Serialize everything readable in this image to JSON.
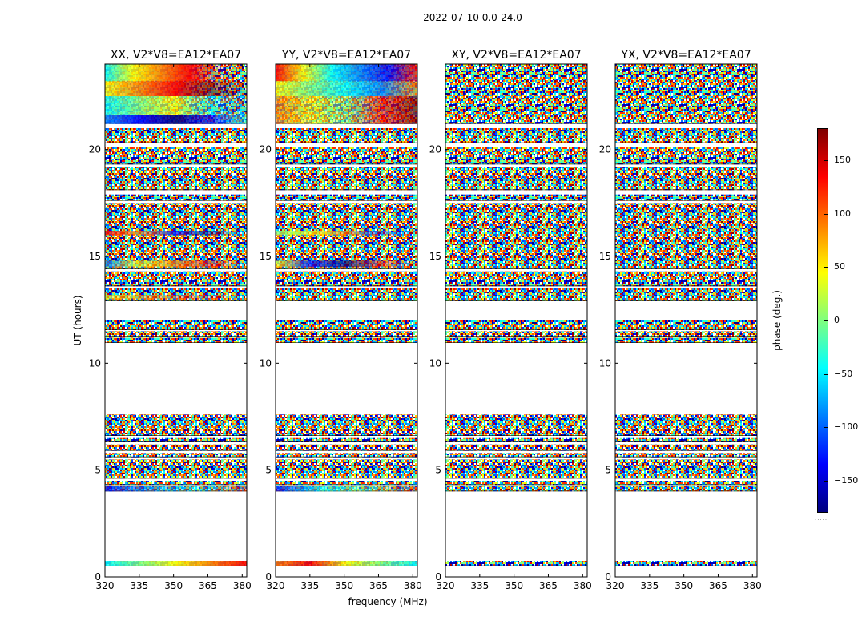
{
  "figure_title": "2022-07-10 0.0-24.0",
  "chart_data": {
    "type": "heatmap",
    "title": "2022-07-10 0.0-24.0",
    "xlabel": "frequency (MHz)",
    "ylabel": "UT (hours)",
    "xlim": [
      320,
      382
    ],
    "ylim": [
      0,
      24
    ],
    "xticks": [
      320,
      335,
      350,
      365,
      380
    ],
    "yticks": [
      0,
      5,
      10,
      15,
      20
    ],
    "panels": [
      {
        "title": "XX, V2*V8=EA12*EA07",
        "pol": "XX",
        "coherent": true
      },
      {
        "title": "YY, V2*V8=EA12*EA07",
        "pol": "YY",
        "coherent": true
      },
      {
        "title": "XY, V2*V8=EA12*EA07",
        "pol": "XY",
        "coherent": false
      },
      {
        "title": "YX, V2*V8=EA12*EA07",
        "pol": "YX",
        "coherent": false
      }
    ],
    "data_blocks_ut_hours": [
      [
        0.5,
        0.75
      ],
      [
        4.0,
        4.25
      ],
      [
        4.3,
        4.5
      ],
      [
        4.6,
        5.5
      ],
      [
        5.6,
        5.8
      ],
      [
        5.9,
        6.2
      ],
      [
        6.3,
        6.5
      ],
      [
        6.6,
        7.6
      ],
      [
        10.95,
        11.2
      ],
      [
        11.25,
        11.5
      ],
      [
        11.55,
        12.0
      ],
      [
        12.9,
        13.5
      ],
      [
        13.6,
        14.3
      ],
      [
        14.4,
        17.5
      ],
      [
        17.6,
        17.9
      ],
      [
        18.1,
        19.2
      ],
      [
        19.3,
        20.1
      ],
      [
        20.3,
        21.0
      ],
      [
        21.2,
        24.0
      ]
    ],
    "colorbar": {
      "label": "phase (deg.)",
      "range": [
        -180,
        180
      ],
      "ticks": [
        -150,
        -100,
        -50,
        0,
        50,
        100,
        150
      ],
      "colormap": "jet"
    }
  },
  "axis_text": {
    "xticks": [
      "320",
      "335",
      "350",
      "365",
      "380"
    ],
    "yticks": [
      "0",
      "5",
      "10",
      "15",
      "20"
    ],
    "cbar_ticks": [
      "150",
      "100",
      "50",
      "0",
      "−50",
      "−100",
      "−150"
    ]
  },
  "cbar_dots": ".....",
  "colors": {
    "jet": [
      "#00007f",
      "#0000ff",
      "#007fff",
      "#00ffff",
      "#7fff7f",
      "#ffff00",
      "#ff7f00",
      "#ff0000",
      "#7f0000"
    ],
    "frame": "#000000",
    "background": "#ffffff"
  }
}
